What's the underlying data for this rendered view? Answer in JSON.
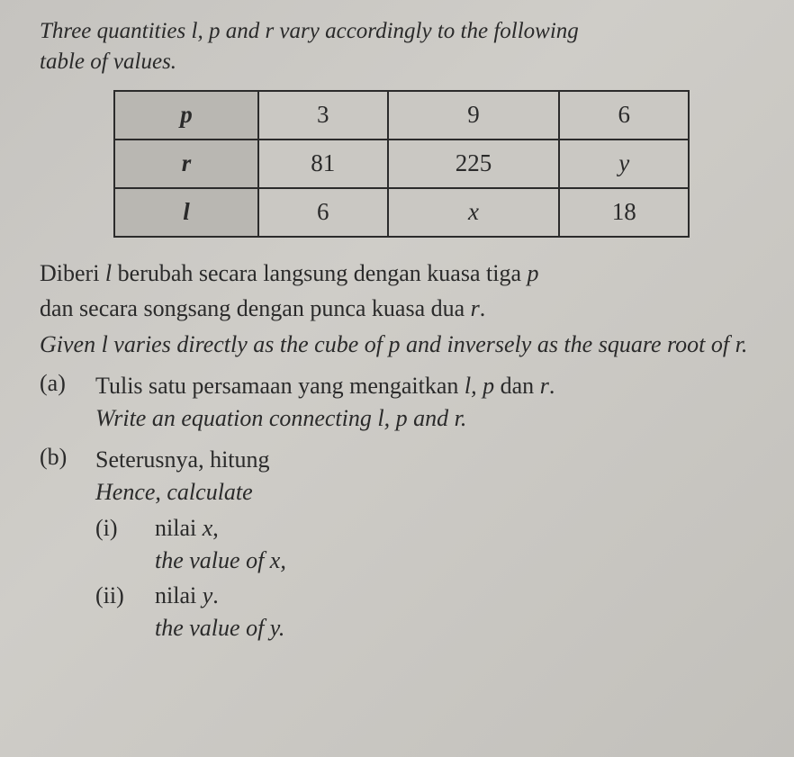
{
  "intro_line1": "Three quantities l, p and r vary accordingly to the following",
  "intro_line2": "table of values.",
  "table": {
    "headers": [
      "p",
      "r",
      "l"
    ],
    "cols": [
      [
        "3",
        "81",
        "6"
      ],
      [
        "9",
        "225",
        "x"
      ],
      [
        "6",
        "y",
        "18"
      ]
    ],
    "italic_cells": {
      "c1r2": true,
      "c2r1": true
    },
    "border_color": "#2b2b2b",
    "header_bg": "#b9b7b2",
    "cell_bg": "#cac8c3",
    "font_size": 27
  },
  "para1_ms_a": "Diberi ",
  "para1_ms_var_l": "l",
  "para1_ms_b": " berubah secara langsung dengan kuasa tiga ",
  "para1_ms_var_p": "p",
  "para1_ms_c": " dan secara songsang dengan punca kuasa dua ",
  "para1_ms_var_r": "r",
  "para1_ms_d": ".",
  "para1_en_a": "Given l varies directly as the cube of p and inversely as the square root of r.",
  "parts": {
    "a": {
      "label": "(a)",
      "ms_a": "Tulis satu persamaan yang mengaitkan ",
      "ms_vars": "l, p",
      "ms_b": " dan ",
      "ms_var_r": "r",
      "ms_c": ".",
      "en": "Write an equation connecting l, p and r."
    },
    "b": {
      "label": "(b)",
      "ms": "Seterusnya, hitung",
      "en": "Hence, calculate",
      "sub_i": {
        "label": "(i)",
        "ms_a": "nilai ",
        "ms_var": "x",
        "ms_b": ",",
        "en_a": "the value of ",
        "en_var": "x",
        "en_b": ","
      },
      "sub_ii": {
        "label": "(ii)",
        "ms_a": "nilai ",
        "ms_var": "y",
        "ms_b": ".",
        "en_a": "the value of ",
        "en_var": "y",
        "en_b": "."
      }
    }
  },
  "colors": {
    "page_bg": "#c8c6c2",
    "text": "#2a2a2a"
  },
  "fonts": {
    "base_family": "Times New Roman",
    "intro_size": 25,
    "body_size": 26
  }
}
